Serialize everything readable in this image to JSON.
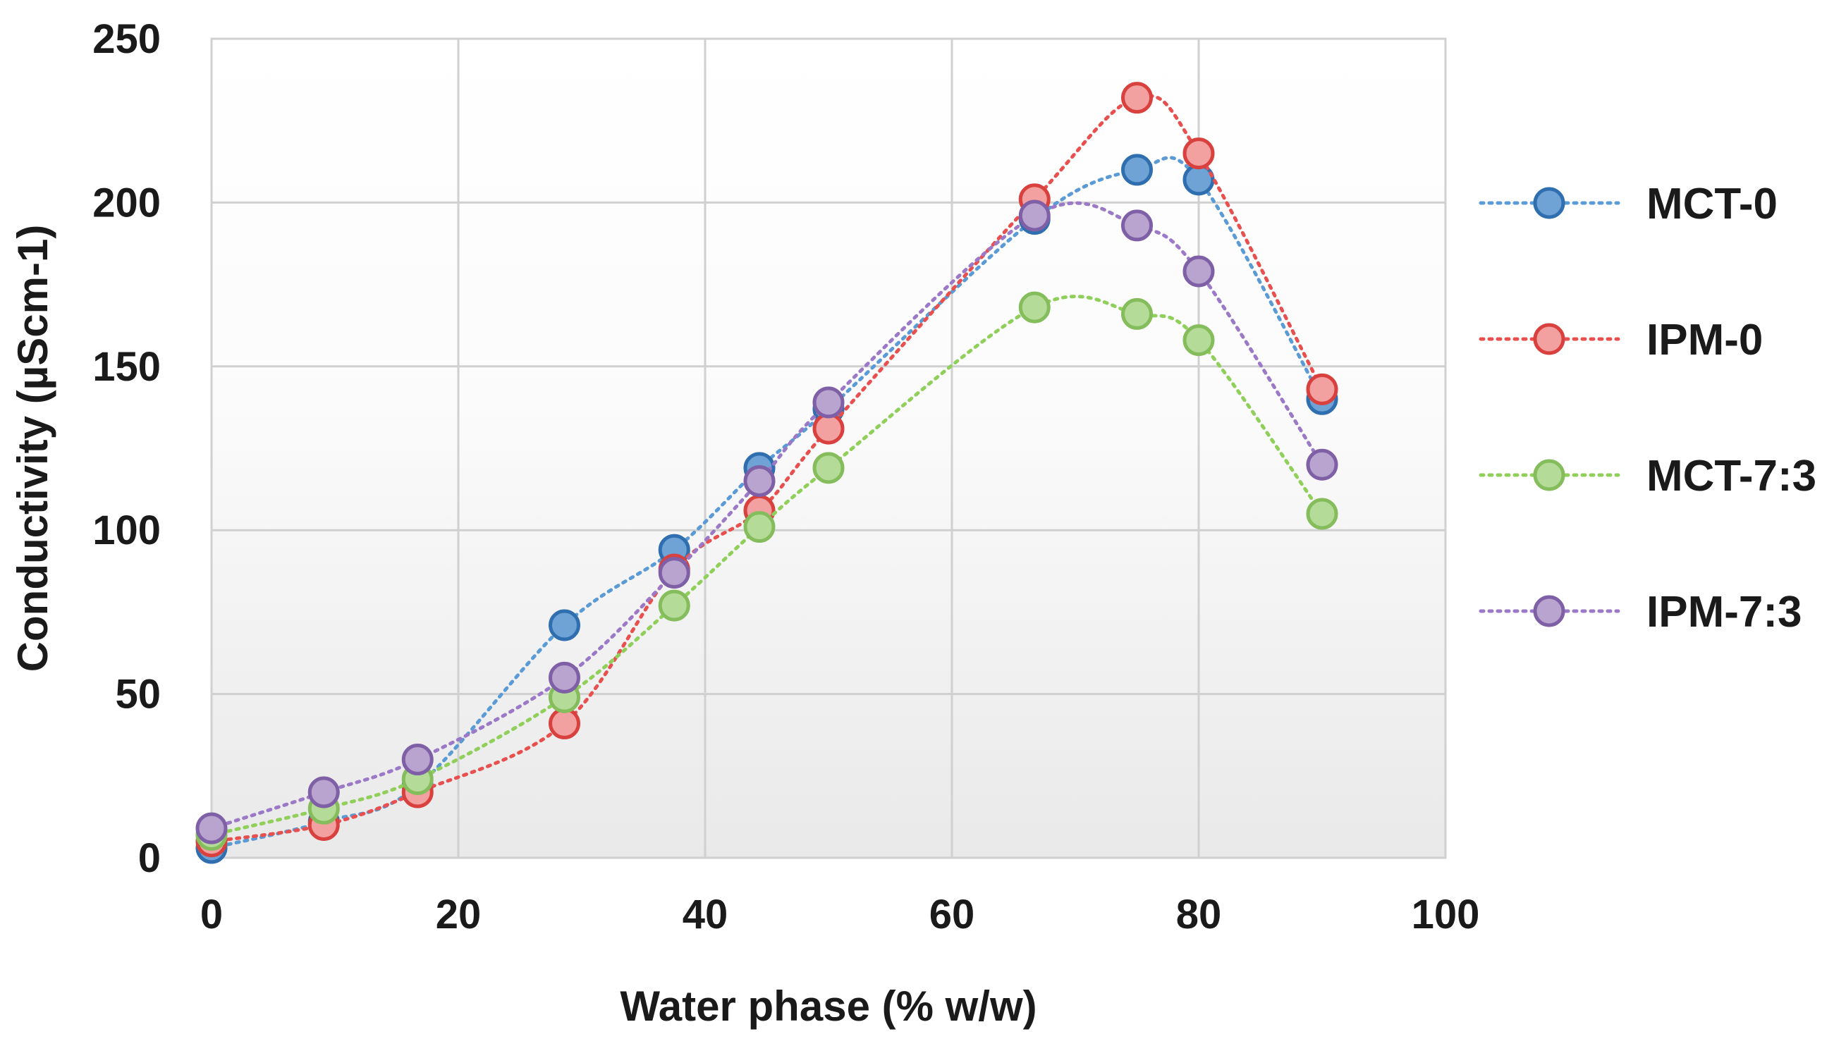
{
  "chart_data": {
    "type": "line",
    "title": "",
    "xlabel": "Water phase (% w/w)",
    "ylabel": "Conductivity (µScm-1)",
    "xlim": [
      0,
      100
    ],
    "ylim": [
      0,
      250
    ],
    "x_ticks": [
      0,
      20,
      40,
      60,
      80,
      100
    ],
    "y_ticks": [
      0,
      50,
      100,
      150,
      200,
      250
    ],
    "grid": true,
    "legend_position": "right",
    "line_style": "dotted, smoothed, circle markers",
    "x": [
      0,
      9.1,
      16.7,
      28.6,
      37.5,
      44.4,
      50,
      66.7,
      75,
      80,
      90
    ],
    "series": [
      {
        "name": "MCT-0",
        "color": "#5b9bd5",
        "marker_fill": "#6fa2d5",
        "marker_edge": "#2f6fb0",
        "values": [
          3,
          11,
          22,
          71,
          94,
          119,
          137,
          195,
          210,
          207,
          140
        ]
      },
      {
        "name": "IPM-0",
        "color": "#e8504f",
        "marker_fill": "#f2a0a0",
        "marker_edge": "#d9413e",
        "values": [
          5,
          10,
          20,
          41,
          88,
          106,
          131,
          201,
          232,
          215,
          143
        ]
      },
      {
        "name": "MCT-7:3",
        "color": "#8fcf5a",
        "marker_fill": "#b4db98",
        "marker_edge": "#86bd5c",
        "values": [
          7,
          15,
          24,
          49,
          77,
          101,
          119,
          168,
          166,
          158,
          105
        ]
      },
      {
        "name": "IPM-7:3",
        "color": "#9b79c7",
        "marker_fill": "#b9a4d0",
        "marker_edge": "#7f5fa5",
        "values": [
          9,
          20,
          30,
          55,
          87,
          115,
          139,
          196,
          193,
          179,
          120
        ]
      }
    ]
  }
}
